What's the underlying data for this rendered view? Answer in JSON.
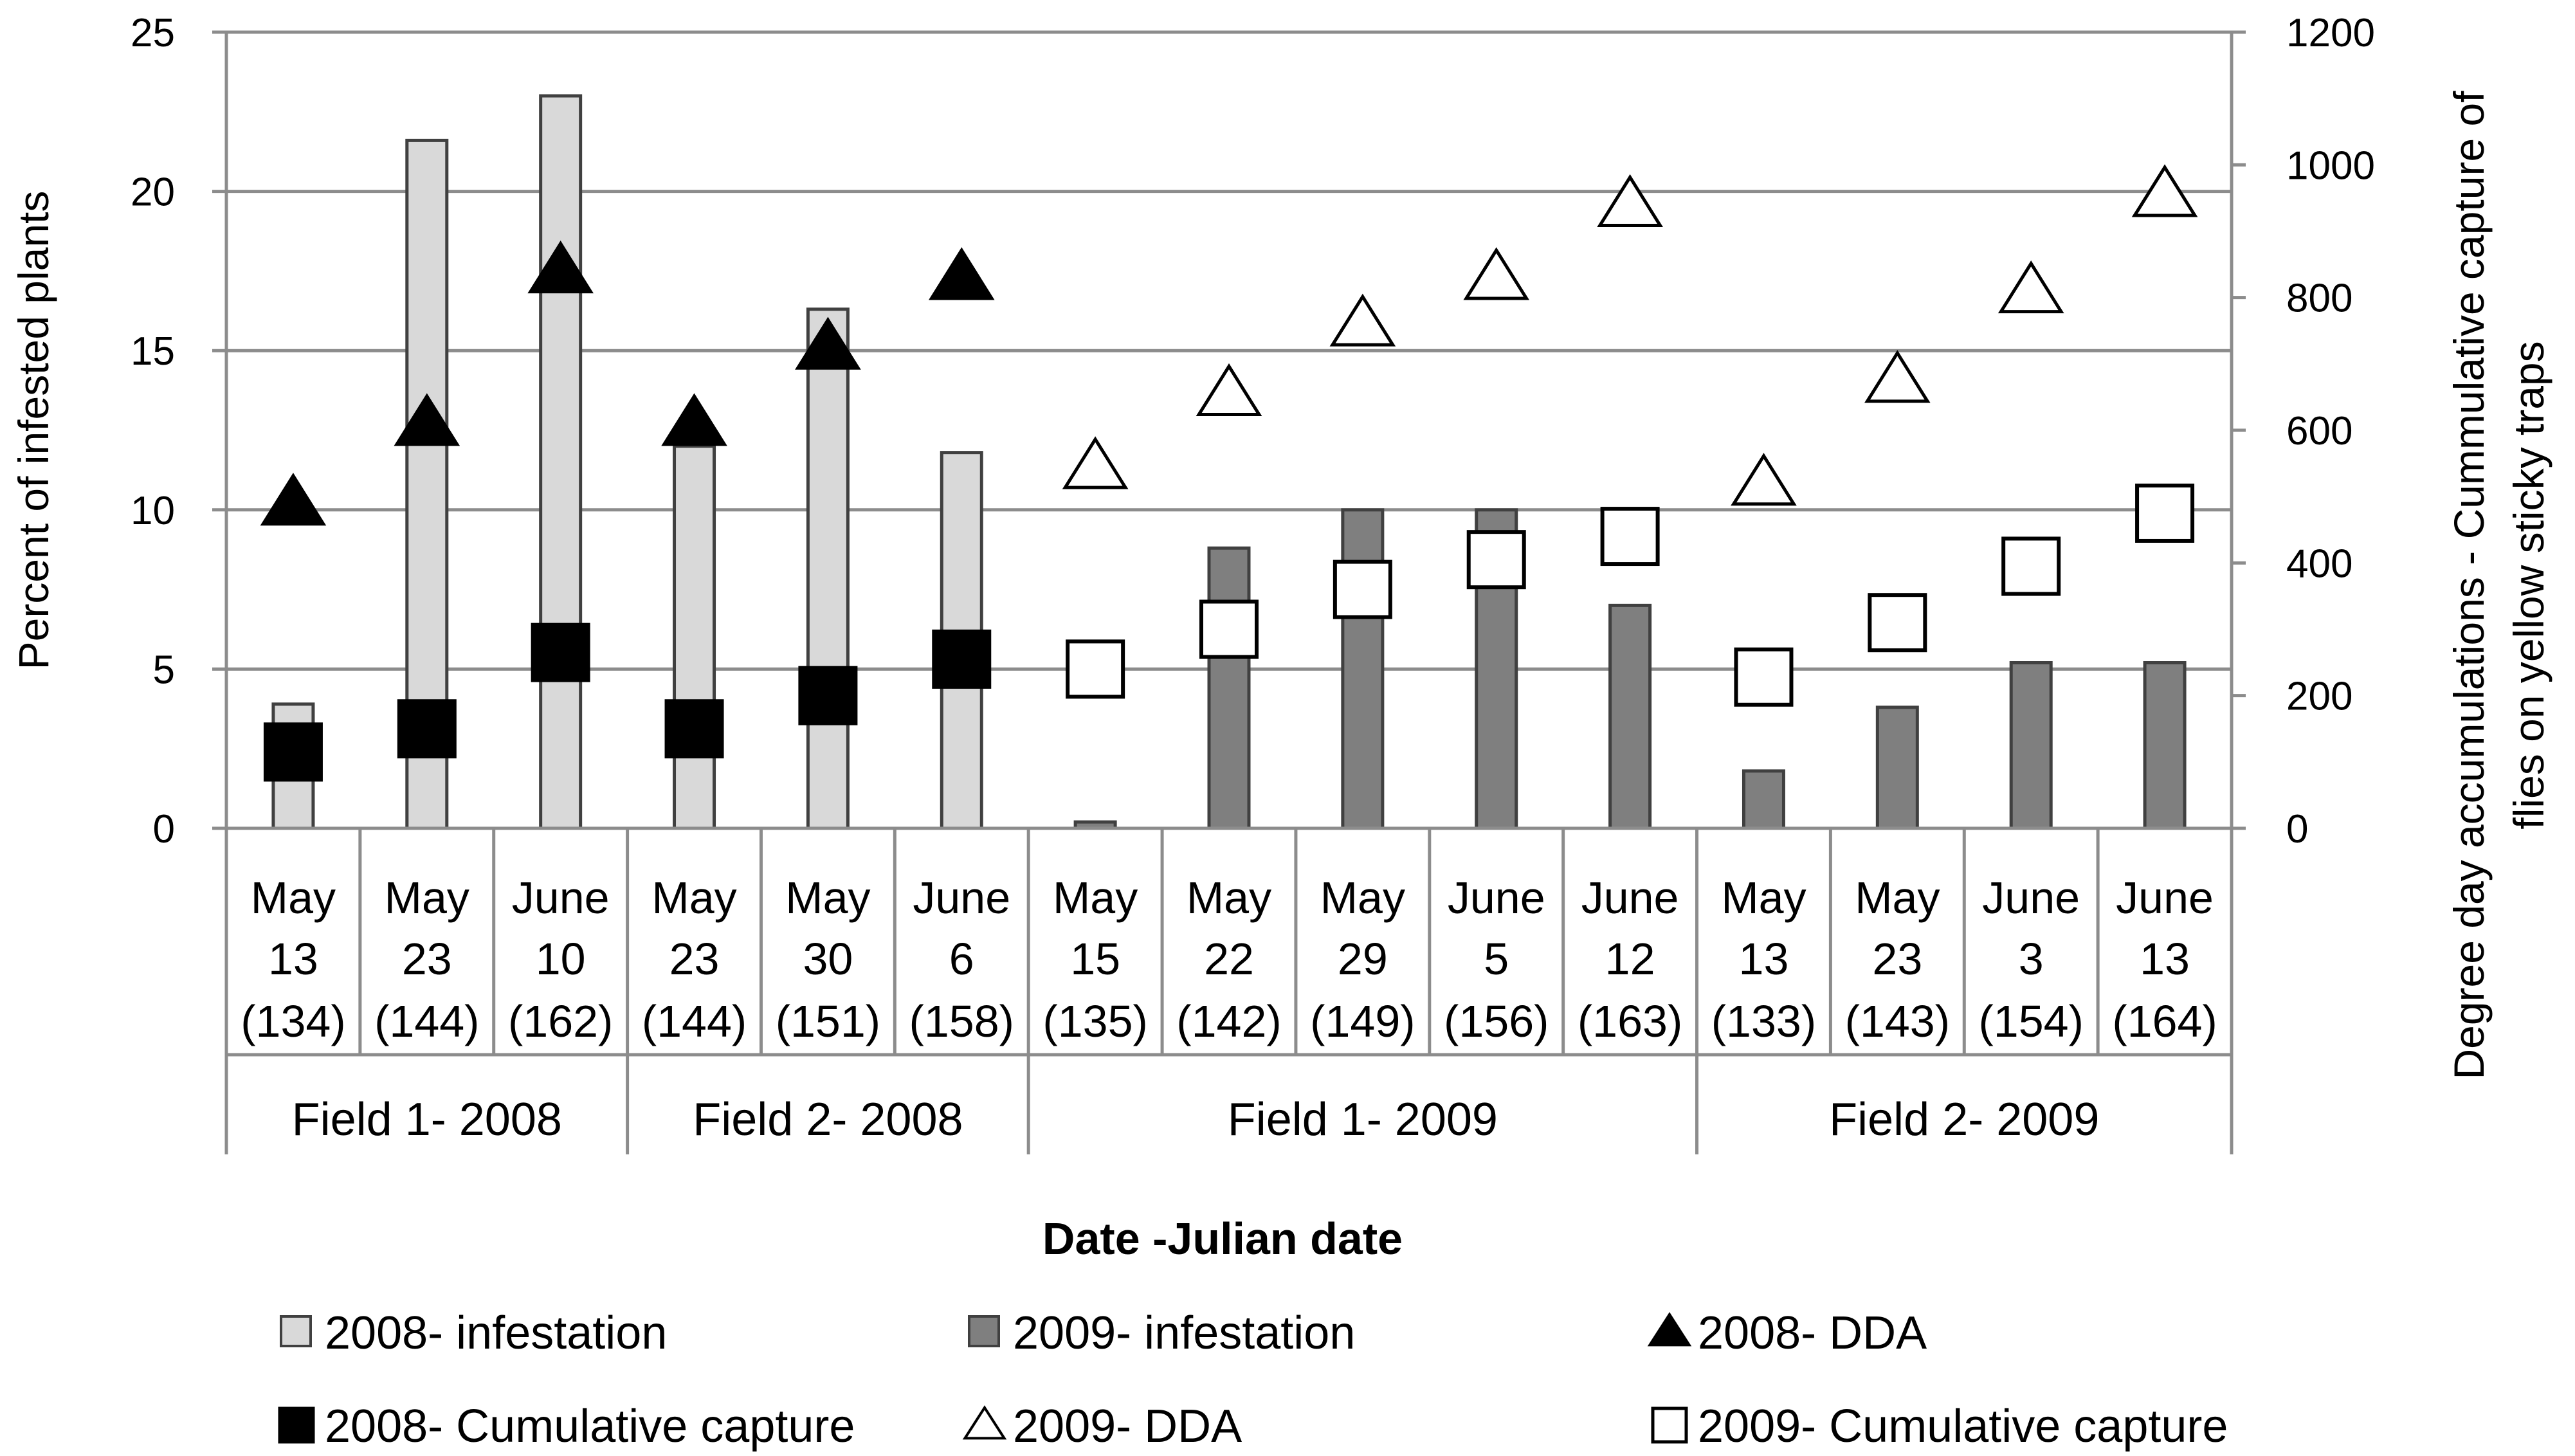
{
  "chart_data": {
    "type": "bar",
    "title": "",
    "xlabel": "Date -Julian date",
    "ylabel": "Percent of infested plants",
    "y2label_line1": "Degree day accumulations - Cummulative capture of",
    "y2label_line2": "flies on yellow sticky traps",
    "ylim": [
      0,
      25
    ],
    "y2lim": [
      0,
      1200
    ],
    "yticks": [
      0,
      5,
      10,
      15,
      20,
      25
    ],
    "y2ticks": [
      0,
      200,
      400,
      600,
      800,
      1000,
      1200
    ],
    "categories": [
      {
        "month": "May",
        "day": "13",
        "julian": "(134)"
      },
      {
        "month": "May",
        "day": "23",
        "julian": "(144)"
      },
      {
        "month": "June",
        "day": "10",
        "julian": "(162)"
      },
      {
        "month": "May",
        "day": "23",
        "julian": "(144)"
      },
      {
        "month": "May",
        "day": "30",
        "julian": "(151)"
      },
      {
        "month": "June",
        "day": "6",
        "julian": "(158)"
      },
      {
        "month": "May",
        "day": "15",
        "julian": "(135)"
      },
      {
        "month": "May",
        "day": "22",
        "julian": "(142)"
      },
      {
        "month": "May",
        "day": "29",
        "julian": "(149)"
      },
      {
        "month": "June",
        "day": "5",
        "julian": "(156)"
      },
      {
        "month": "June",
        "day": "12",
        "julian": "(163)"
      },
      {
        "month": "May",
        "day": "13",
        "julian": "(133)"
      },
      {
        "month": "May",
        "day": "23",
        "julian": "(143)"
      },
      {
        "month": "June",
        "day": "3",
        "julian": "(154)"
      },
      {
        "month": "June",
        "day": "13",
        "julian": "(164)"
      }
    ],
    "groups": [
      {
        "label": "Field 1- 2008",
        "start": 0,
        "end": 3
      },
      {
        "label": "Field 2- 2008",
        "start": 3,
        "end": 6
      },
      {
        "label": "Field 1- 2009",
        "start": 6,
        "end": 11
      },
      {
        "label": "Field 2- 2009",
        "start": 11,
        "end": 15
      }
    ],
    "series": [
      {
        "name": "2008- infestation",
        "kind": "bar",
        "axis": "left",
        "color": "#d9d9d9",
        "values": [
          3.9,
          21.6,
          23.0,
          12.0,
          16.3,
          11.8,
          null,
          null,
          null,
          null,
          null,
          null,
          null,
          null,
          null
        ]
      },
      {
        "name": "2009- infestation",
        "kind": "bar",
        "axis": "left",
        "color": "#7f7f7f",
        "values": [
          null,
          null,
          null,
          null,
          null,
          null,
          0.2,
          8.8,
          10.0,
          10.0,
          7.0,
          1.8,
          3.8,
          5.2,
          5.2
        ]
      },
      {
        "name": "2008- DDA",
        "kind": "marker",
        "shape": "triangle",
        "filled": true,
        "axis": "right",
        "values": [
          490,
          610,
          840,
          610,
          725,
          830,
          null,
          null,
          null,
          null,
          null,
          null,
          null,
          null,
          null
        ]
      },
      {
        "name": "2008- Cumulative capture",
        "kind": "marker",
        "shape": "square",
        "filled": true,
        "axis": "right",
        "values": [
          115,
          150,
          265,
          150,
          200,
          255,
          null,
          null,
          null,
          null,
          null,
          null,
          null,
          null,
          null
        ]
      },
      {
        "name": "2009- DDA",
        "kind": "marker",
        "shape": "triangle",
        "filled": false,
        "axis": "right",
        "values": [
          null,
          null,
          null,
          null,
          null,
          null,
          545,
          655,
          760,
          830,
          940,
          520,
          675,
          810,
          955
        ]
      },
      {
        "name": "2009- Cumulative capture",
        "kind": "marker",
        "shape": "square",
        "filled": false,
        "axis": "right",
        "values": [
          null,
          null,
          null,
          null,
          null,
          null,
          240,
          300,
          360,
          405,
          440,
          228,
          310,
          395,
          475
        ]
      }
    ],
    "legend_position": "bottom"
  }
}
